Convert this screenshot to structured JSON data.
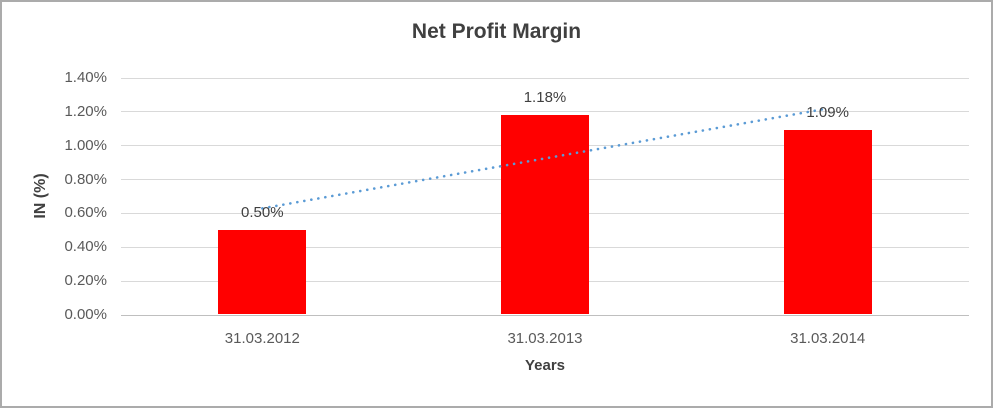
{
  "chart_data": {
    "type": "bar",
    "title": "Net Profit Margin",
    "categories": [
      "31.03.2012",
      "31.03.2013",
      "31.03.2014"
    ],
    "values": [
      0.5,
      1.18,
      1.09
    ],
    "data_labels": [
      "0.50%",
      "1.18%",
      "1.09%"
    ],
    "xlabel": "Years",
    "ylabel": "IN (%)",
    "ylim": [
      0,
      1.4
    ],
    "ytick_step": 0.2,
    "yticks": [
      {
        "value": 0.0,
        "label": "0.00%"
      },
      {
        "value": 0.2,
        "label": "0.20%"
      },
      {
        "value": 0.4,
        "label": "0.40%"
      },
      {
        "value": 0.6,
        "label": "0.60%"
      },
      {
        "value": 0.8,
        "label": "0.80%"
      },
      {
        "value": 1.0,
        "label": "1.00%"
      },
      {
        "value": 1.2,
        "label": "1.20%"
      },
      {
        "value": 1.4,
        "label": "1.40%"
      }
    ],
    "grid": true,
    "legend": "none",
    "bar_color": "#FF0000",
    "trendline": {
      "type": "linear",
      "style": "dotted",
      "color": "#5B9BD5",
      "start_value": 0.63,
      "end_value": 1.22
    }
  },
  "colors": {
    "title_text": "#404040",
    "axis_text": "#595959",
    "gridline": "#D9D9D9",
    "axis_line": "#BFBFBF",
    "border": "#ABABAB",
    "background": "#FFFFFF"
  }
}
